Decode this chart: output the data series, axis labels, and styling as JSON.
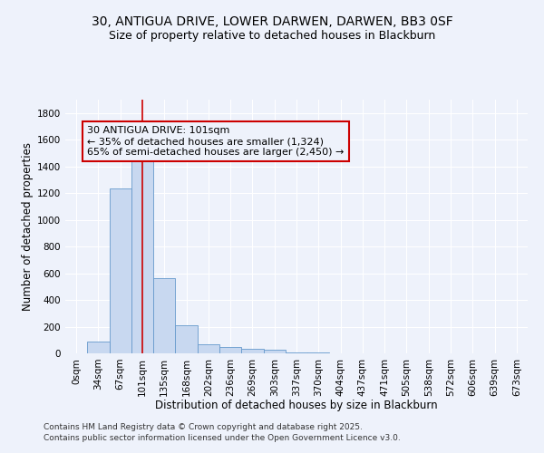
{
  "title_line1": "30, ANTIGUA DRIVE, LOWER DARWEN, DARWEN, BB3 0SF",
  "title_line2": "Size of property relative to detached houses in Blackburn",
  "xlabel": "Distribution of detached houses by size in Blackburn",
  "ylabel": "Number of detached properties",
  "bar_labels": [
    "0sqm",
    "34sqm",
    "67sqm",
    "101sqm",
    "135sqm",
    "168sqm",
    "202sqm",
    "236sqm",
    "269sqm",
    "303sqm",
    "337sqm",
    "370sqm",
    "404sqm",
    "437sqm",
    "471sqm",
    "505sqm",
    "538sqm",
    "572sqm",
    "606sqm",
    "639sqm",
    "673sqm"
  ],
  "bar_values": [
    0,
    90,
    1235,
    1520,
    565,
    210,
    65,
    45,
    35,
    28,
    10,
    5,
    2,
    0,
    0,
    0,
    0,
    0,
    0,
    0,
    0
  ],
  "bar_color": "#c8d8f0",
  "bar_edge_color": "#6699cc",
  "red_line_index": 3,
  "red_line_color": "#cc0000",
  "ylim": [
    0,
    1900
  ],
  "yticks": [
    0,
    200,
    400,
    600,
    800,
    1000,
    1200,
    1400,
    1600,
    1800
  ],
  "annotation_text": "30 ANTIGUA DRIVE: 101sqm\n← 35% of detached houses are smaller (1,324)\n65% of semi-detached houses are larger (2,450) →",
  "annotation_box_color": "#cc0000",
  "footnote_line1": "Contains HM Land Registry data © Crown copyright and database right 2025.",
  "footnote_line2": "Contains public sector information licensed under the Open Government Licence v3.0.",
  "background_color": "#eef2fb",
  "grid_color": "#ffffff",
  "title_fontsize": 10,
  "subtitle_fontsize": 9,
  "axis_label_fontsize": 8.5,
  "tick_fontsize": 7.5,
  "annotation_fontsize": 8,
  "footnote_fontsize": 6.5
}
